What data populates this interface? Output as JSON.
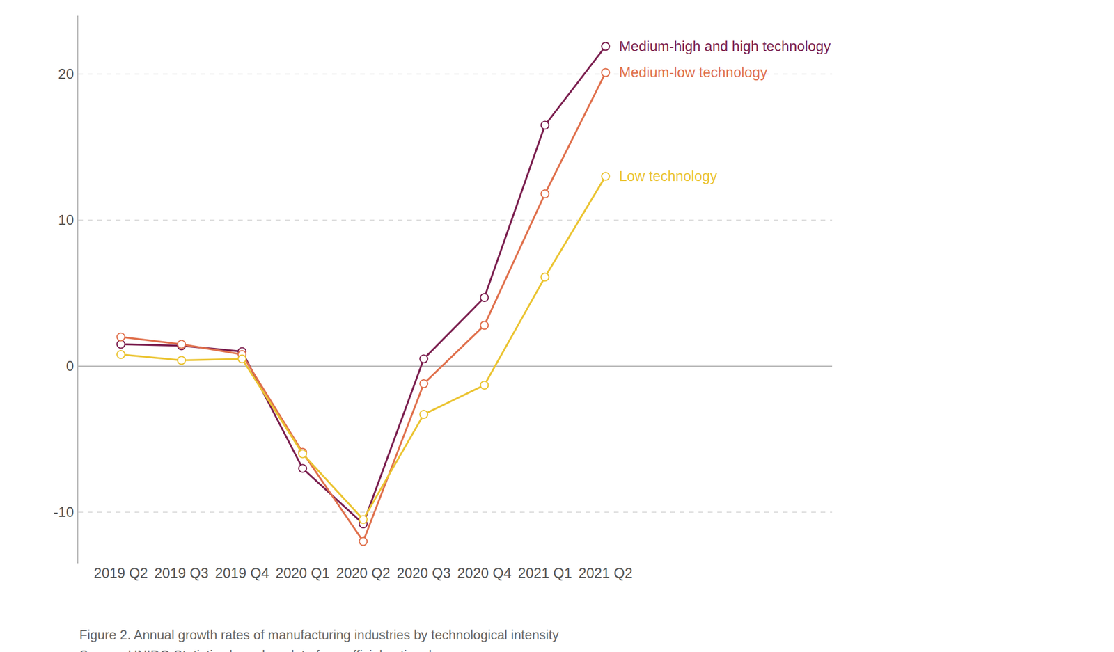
{
  "chart_data": {
    "type": "line",
    "categories": [
      "2019 Q2",
      "2019 Q3",
      "2019 Q4",
      "2020 Q1",
      "2020 Q2",
      "2020 Q3",
      "2020 Q4",
      "2021 Q1",
      "2021 Q2"
    ],
    "series": [
      {
        "name": "Medium-high and high technology",
        "color": "#7b1f4f",
        "values": [
          1.5,
          1.4,
          1.0,
          -7.0,
          -10.8,
          0.5,
          4.7,
          16.5,
          21.9
        ]
      },
      {
        "name": "Medium-low technology",
        "color": "#e0714d",
        "values": [
          2.0,
          1.5,
          0.8,
          -5.9,
          -12.0,
          -1.2,
          2.8,
          11.8,
          20.1
        ]
      },
      {
        "name": "Low technology",
        "color": "#ebc432",
        "values": [
          0.8,
          0.4,
          0.5,
          -6.0,
          -10.5,
          -3.3,
          -1.3,
          6.1,
          13.0
        ]
      }
    ],
    "ylim": [
      -13.5,
      24
    ],
    "yticks": [
      -10,
      0,
      10,
      20
    ],
    "grid": true,
    "marker": "circle",
    "annotations": [
      "Figure 2. Annual growth rates of manufacturing industries by technological intensity",
      "Source: UNIDO Statistics based on data from official national sources."
    ]
  }
}
